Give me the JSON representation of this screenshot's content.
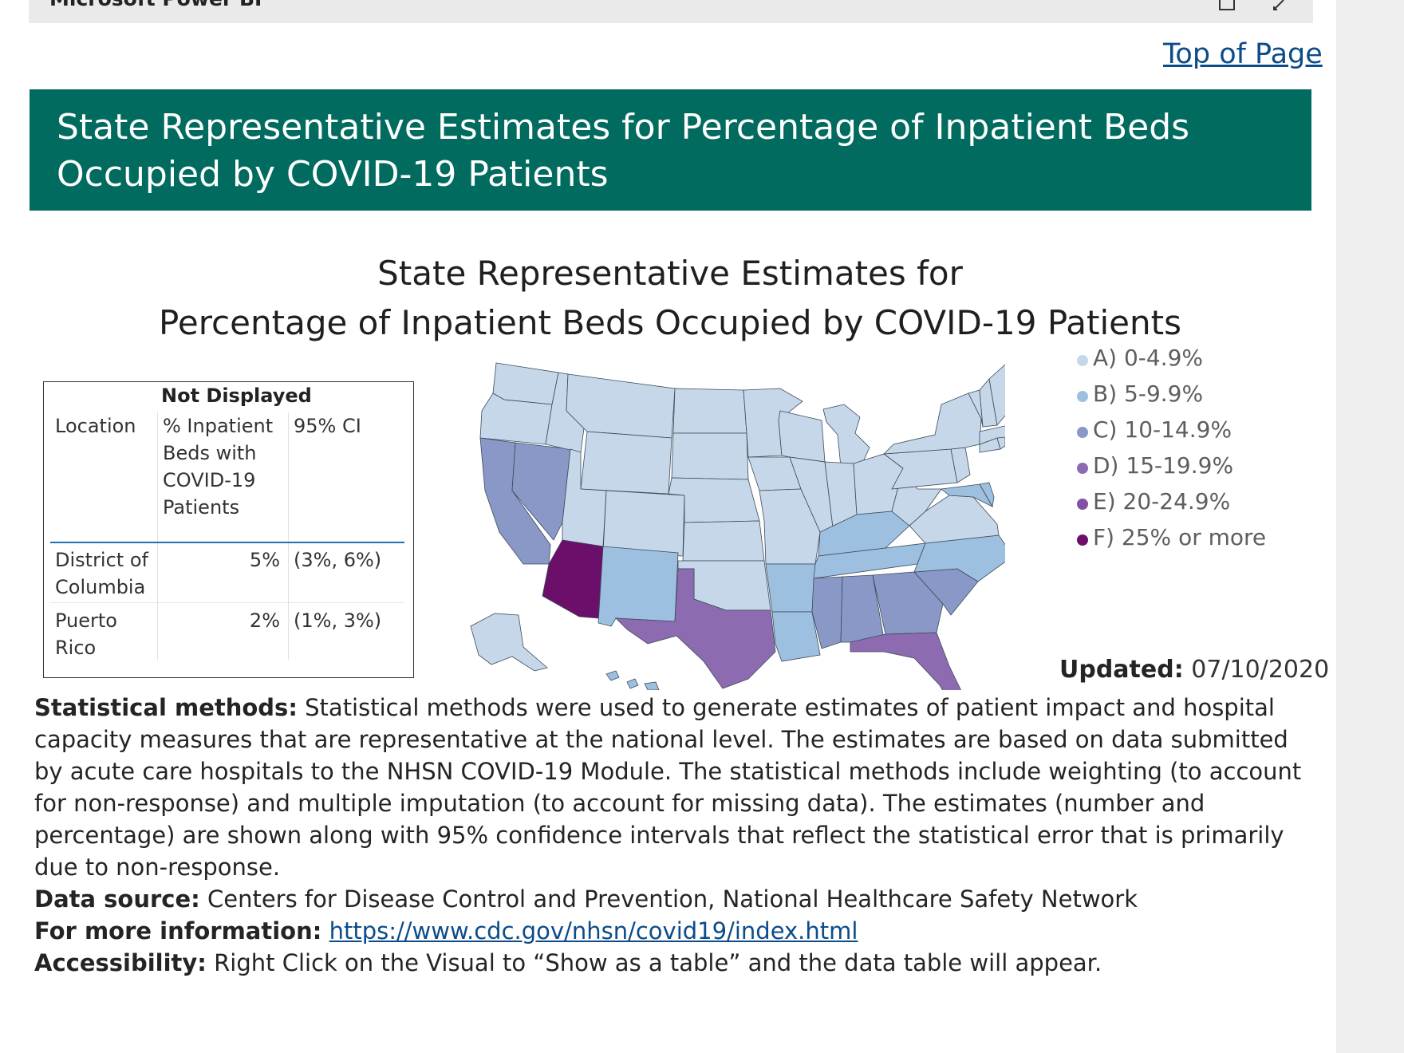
{
  "topbar": {
    "app_name": "Microsoft Power BI"
  },
  "top_link": "Top of Page",
  "banner_title": "State Representative Estimates for Percentage of Inpatient Beds Occupied by COVID-19 Patients",
  "chart_title_line1": "State Representative Estimates for",
  "chart_title_line2": "Percentage of Inpatient Beds Occupied by COVID-19 Patients",
  "not_displayed_table": {
    "title": "Not Displayed",
    "headers": [
      "Location",
      "% Inpatient Beds with COVID-19 Patients",
      "95% CI"
    ],
    "header_lines": [
      "% Inpatient",
      "Beds with",
      "COVID-19",
      "Patients"
    ],
    "rows": [
      {
        "location_lines": [
          "District of",
          "Columbia"
        ],
        "pct": "5%",
        "ci": "(3%, 6%)"
      },
      {
        "location_lines": [
          "Puerto",
          "Rico"
        ],
        "pct": "2%",
        "ci": "(1%, 3%)"
      }
    ]
  },
  "legend": [
    {
      "label": "A) 0-4.9%",
      "color": "#c6d7e9"
    },
    {
      "label": "B) 5-9.9%",
      "color": "#9dc0e0"
    },
    {
      "label": "C) 10-14.9%",
      "color": "#8a98c8"
    },
    {
      "label": "D) 15-19.9%",
      "color": "#8d6bb1"
    },
    {
      "label": "E) 20-24.9%",
      "color": "#8450a3"
    },
    {
      "label": "F) 25% or more",
      "color": "#6b0f6b"
    }
  ],
  "chart_data": {
    "type": "choropleth",
    "categories_by_state": {
      "Washington": "A) 0-4.9%",
      "Oregon": "A) 0-4.9%",
      "Idaho": "A) 0-4.9%",
      "Montana": "A) 0-4.9%",
      "Wyoming": "A) 0-4.9%",
      "North Dakota": "A) 0-4.9%",
      "South Dakota": "A) 0-4.9%",
      "Nebraska": "A) 0-4.9%",
      "Minnesota": "A) 0-4.9%",
      "Iowa": "A) 0-4.9%",
      "Wisconsin": "A) 0-4.9%",
      "Michigan": "A) 0-4.9%",
      "Illinois": "A) 0-4.9%",
      "Indiana": "A) 0-4.9%",
      "Ohio": "A) 0-4.9%",
      "Pennsylvania": "A) 0-4.9%",
      "New York": "A) 0-4.9%",
      "Maine": "A) 0-4.9%",
      "Vermont": "A) 0-4.9%",
      "New Hampshire": "A) 0-4.9%",
      "Massachusetts": "A) 0-4.9%",
      "Connecticut": "A) 0-4.9%",
      "Rhode Island": "A) 0-4.9%",
      "New Jersey": "A) 0-4.9%",
      "Utah": "A) 0-4.9%",
      "Colorado": "A) 0-4.9%",
      "Kansas": "A) 0-4.9%",
      "Missouri": "A) 0-4.9%",
      "Oklahoma": "A) 0-4.9%",
      "West Virginia": "A) 0-4.9%",
      "Virginia": "A) 0-4.9%",
      "Alaska": "A) 0-4.9%",
      "Hawaii": "B) 5-9.9%",
      "New Mexico": "B) 5-9.9%",
      "Arkansas": "B) 5-9.9%",
      "Louisiana": "B) 5-9.9%",
      "Kentucky": "B) 5-9.9%",
      "Tennessee": "B) 5-9.9%",
      "North Carolina": "B) 5-9.9%",
      "Maryland": "B) 5-9.9%",
      "Delaware": "B) 5-9.9%",
      "California": "C) 10-14.9%",
      "Nevada": "C) 10-14.9%",
      "Mississippi": "C) 10-14.9%",
      "Alabama": "C) 10-14.9%",
      "Georgia": "C) 10-14.9%",
      "South Carolina": "C) 10-14.9%",
      "Texas": "D) 15-19.9%",
      "Florida": "D) 15-19.9%",
      "Arizona": "F) 25% or more"
    }
  },
  "updated_label": "Updated:",
  "updated_value": "07/10/2020",
  "notes": {
    "methods_label": "Statistical methods:",
    "methods_text": "Statistical methods were used to generate estimates of patient impact and hospital capacity measures that are representative at the national level. The estimates are based on data submitted by acute care hospitals to the NHSN COVID-19 Module. The statistical methods include weighting (to account for non-response) and multiple imputation (to account for missing data). The estimates (number and percentage) are shown along with 95% confidence intervals that reflect the statistical error that is primarily due to non-response.",
    "source_label": "Data source:",
    "source_text": "Centers for Disease Control and Prevention, National Healthcare Safety Network",
    "info_label": "For more information:",
    "info_link": "https://www.cdc.gov/nhsn/covid19/index.html",
    "access_label": "Accessibility:",
    "access_text": "Right Click on the Visual to “Show as a table” and the data table will appear."
  }
}
